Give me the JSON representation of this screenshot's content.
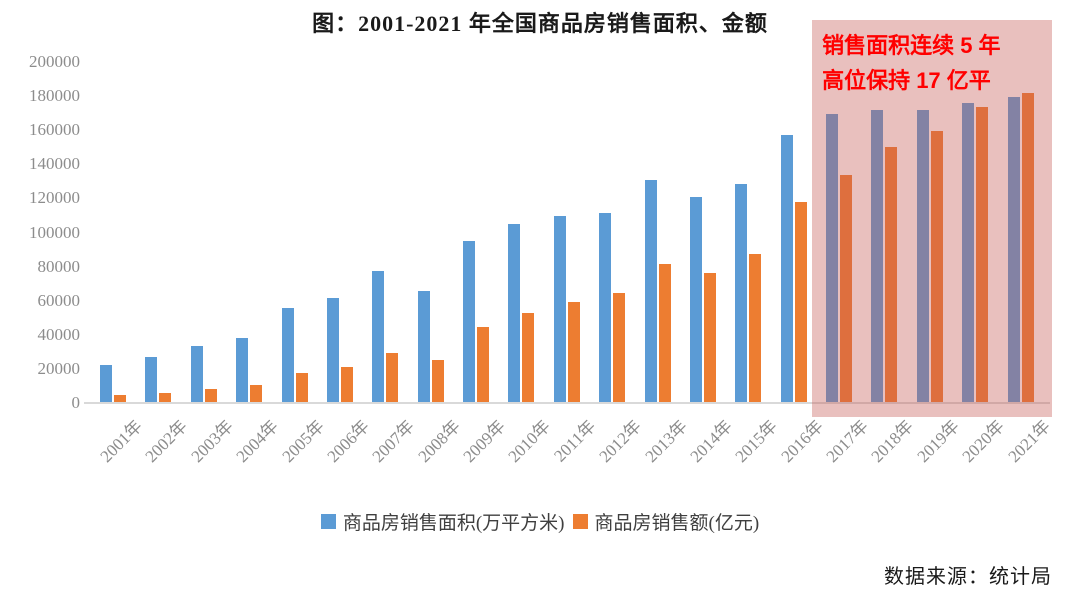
{
  "title": "图：2001-2021 年全国商品房销售面积、金额",
  "annotation": {
    "line1": "销售面积连续 5 年",
    "line2": "高位保持 17 亿平",
    "text_color": "#ff0000",
    "box_fill": "rgba(198,90,85,0.38)"
  },
  "source": "数据来源：统计局",
  "legend": [
    {
      "label": "商品房销售面积(万平方米)",
      "color": "#5b9bd5"
    },
    {
      "label": "商品房销售额(亿元)",
      "color": "#ed7d31"
    }
  ],
  "colors": {
    "series_area": "#5b9bd5",
    "series_amount": "#ed7d31",
    "axis_line": "#d9d9d9",
    "tick_text": "#8c8c8c"
  },
  "chart_data": {
    "type": "bar",
    "title": "图：2001-2021 年全国商品房销售面积、金额",
    "categories": [
      "2001年",
      "2002年",
      "2003年",
      "2004年",
      "2005年",
      "2006年",
      "2007年",
      "2008年",
      "2009年",
      "2010年",
      "2011年",
      "2012年",
      "2013年",
      "2014年",
      "2015年",
      "2016年",
      "2017年",
      "2018年",
      "2019年",
      "2020年",
      "2021年"
    ],
    "series": [
      {
        "name": "商品房销售面积(万平方米)",
        "color": "#5b9bd5",
        "values": [
          22412,
          26808,
          33718,
          38232,
          55486,
          61857,
          77355,
          65970,
          94755,
          104765,
          109946,
          111304,
          130551,
          120649,
          128495,
          157349,
          169408,
          171654,
          171558,
          176086,
          179433
        ]
      },
      {
        "name": "商品房销售额(亿元)",
        "color": "#ed7d31",
        "values": [
          4863,
          6032,
          7956,
          10376,
          17576,
          20826,
          29604,
          25068,
          44355,
          52721,
          59119,
          64456,
          81428,
          76292,
          87281,
          117627,
          133701,
          149973,
          159725,
          173613,
          181930
        ]
      }
    ],
    "xlabel": "",
    "ylabel": "",
    "ylim": [
      0,
      200000
    ],
    "yticks": [
      0,
      20000,
      40000,
      60000,
      80000,
      100000,
      120000,
      140000,
      160000,
      180000,
      200000
    ],
    "grid": false,
    "legend_position": "bottom",
    "highlight": {
      "from": "2017年",
      "to": "2021年",
      "note": "销售面积连续 5 年高位保持 17 亿平"
    }
  }
}
